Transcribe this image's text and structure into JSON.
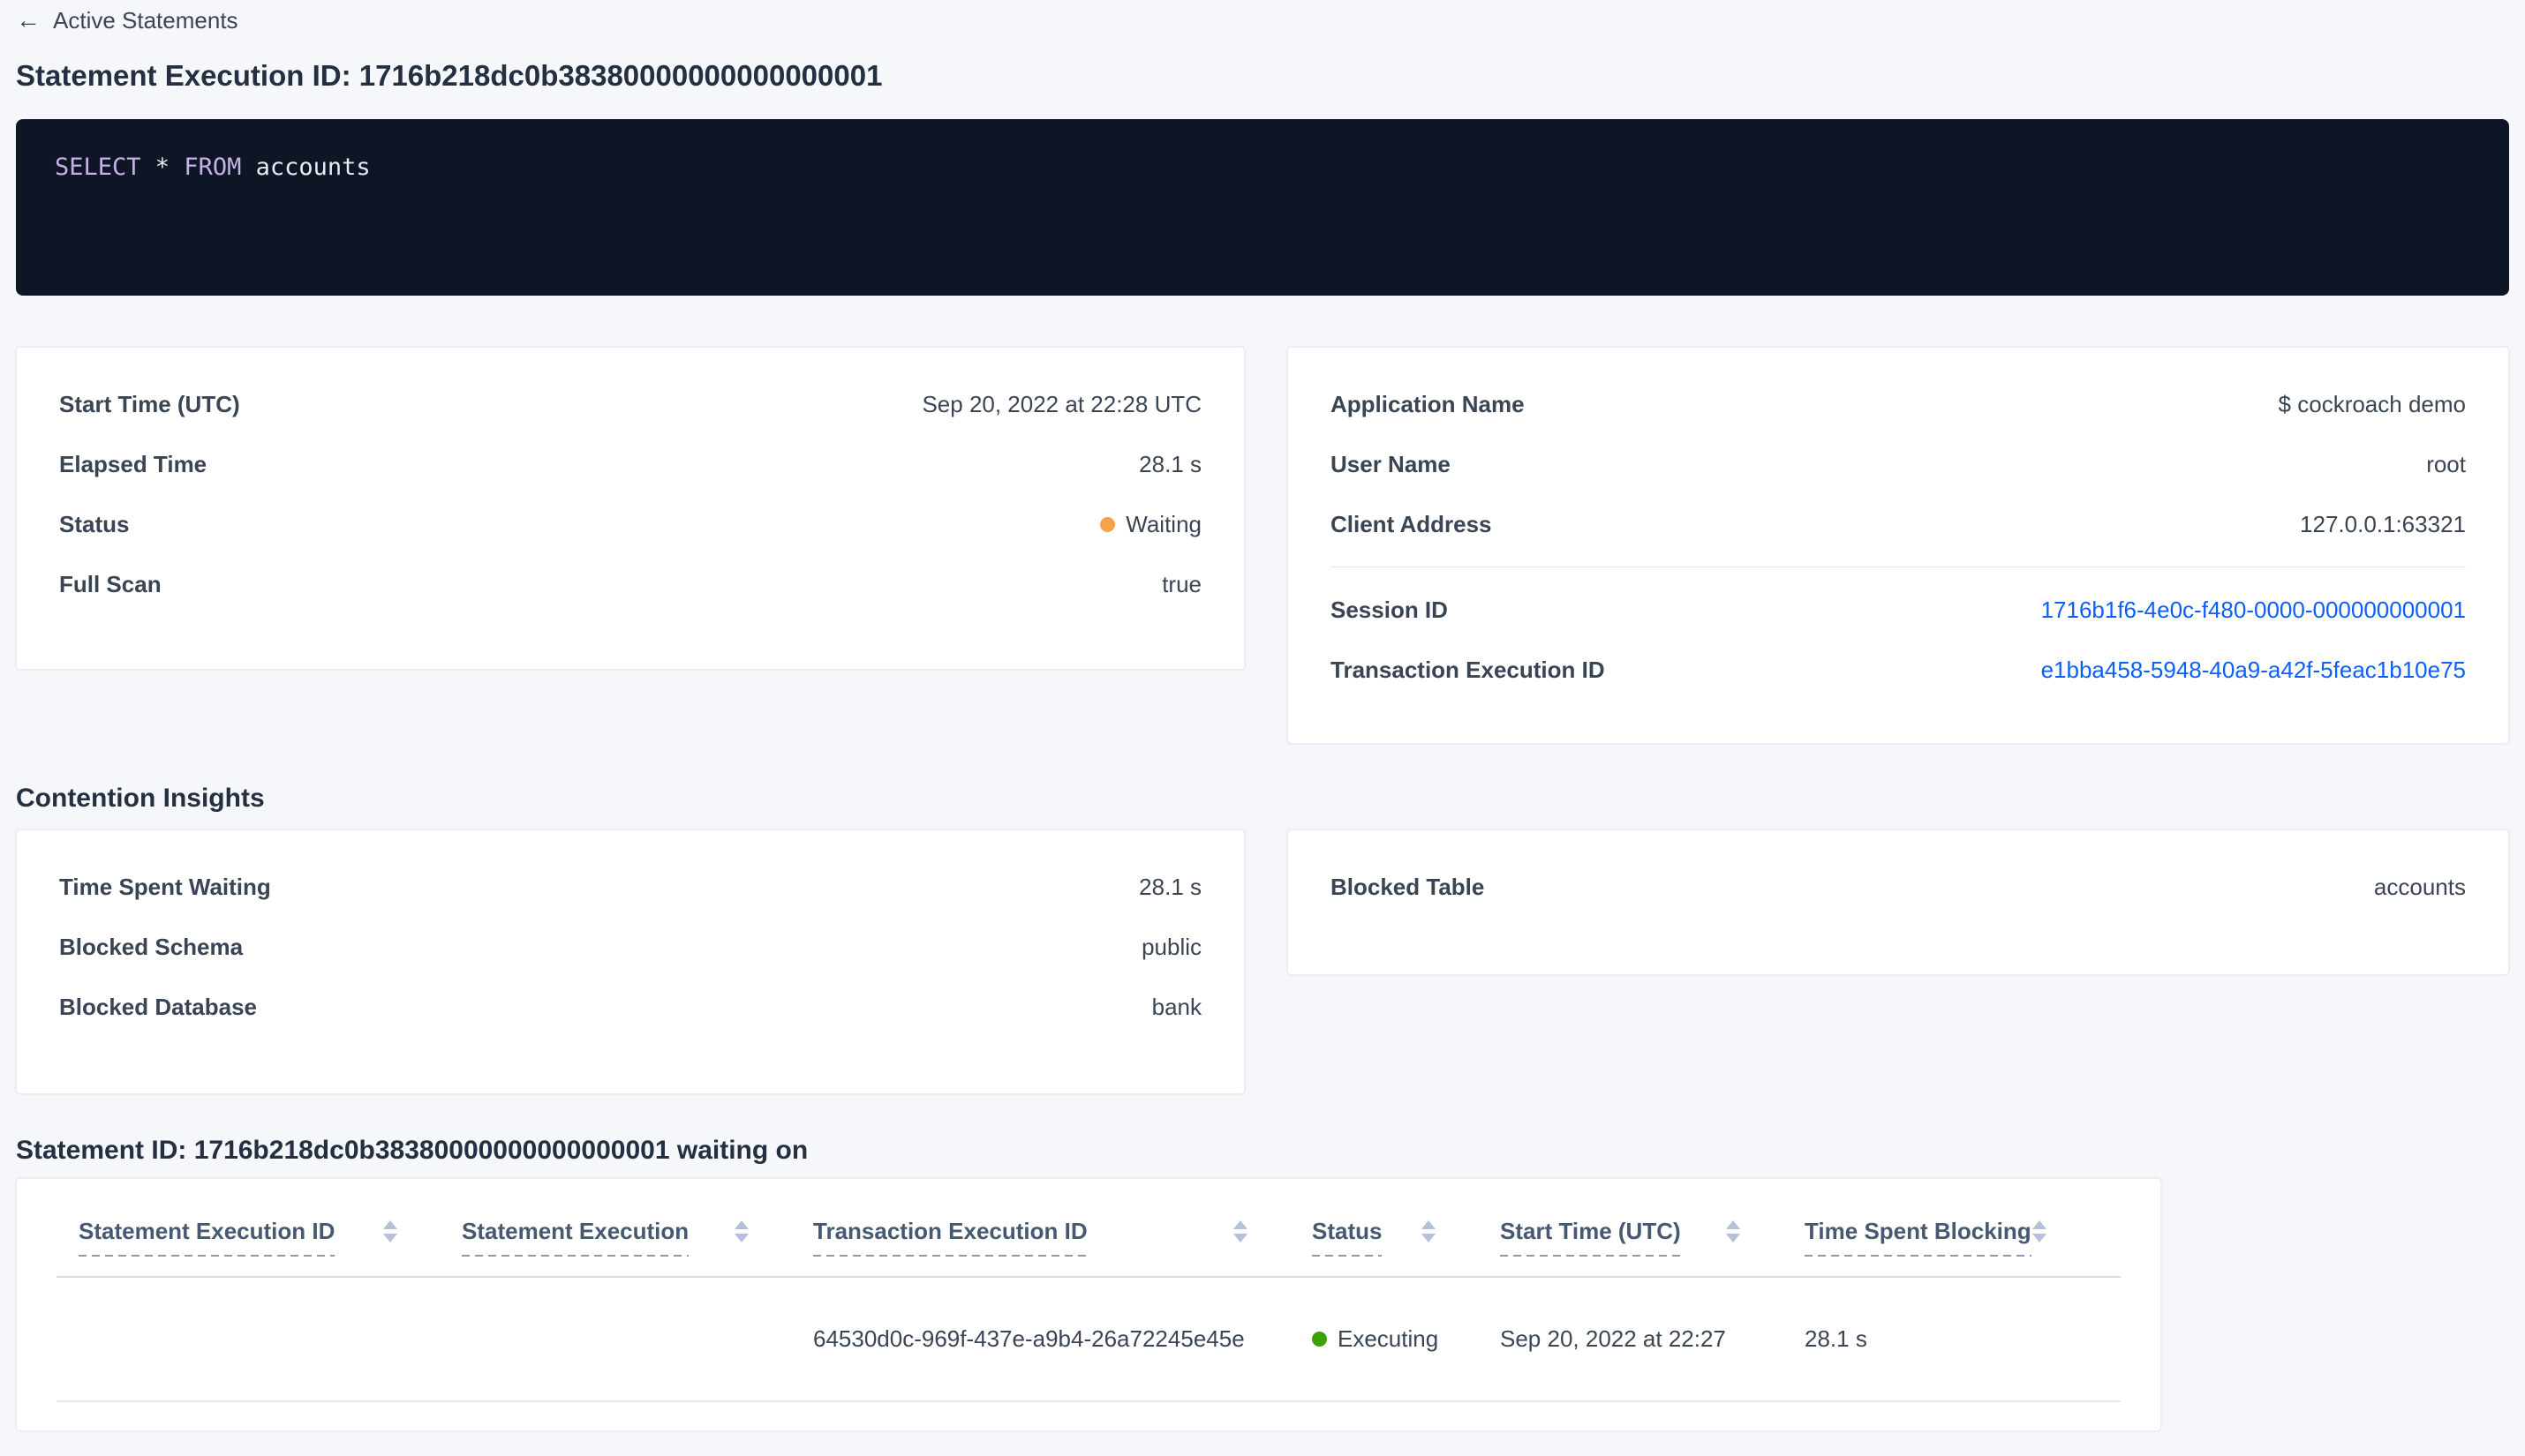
{
  "header": {
    "back_label": "Active Statements",
    "title": "Statement Execution ID: 1716b218dc0b38380000000000000001"
  },
  "icons": {
    "back_arrow": "←"
  },
  "sql_box": {
    "tokens": [
      "SELECT",
      " * ",
      "FROM",
      " accounts"
    ]
  },
  "execution_card": {
    "rows": [
      {
        "label": "Start Time (UTC)",
        "value": "Sep 20, 2022 at 22:28 UTC"
      },
      {
        "label": "Elapsed Time",
        "value": "28.1 s"
      },
      {
        "label": "Status",
        "value": "Waiting",
        "status_color": "#f7a34b"
      },
      {
        "label": "Full Scan",
        "value": "true"
      }
    ]
  },
  "session_card": {
    "rows": [
      {
        "label": "Application Name",
        "value": "$ cockroach demo"
      },
      {
        "label": "User Name",
        "value": "root"
      },
      {
        "label": "Client Address",
        "value": "127.0.0.1:63321"
      }
    ],
    "link_rows": [
      {
        "label": "Session ID",
        "value": "1716b1f6-4e0c-f480-0000-000000000001"
      },
      {
        "label": "Transaction Execution ID",
        "value": "e1bba458-5948-40a9-a42f-5feac1b10e75"
      }
    ]
  },
  "contention": {
    "heading": "Contention Insights",
    "left_rows": [
      {
        "label": "Time Spent Waiting",
        "value": "28.1 s"
      },
      {
        "label": "Blocked Schema",
        "value": "public"
      },
      {
        "label": "Blocked Database",
        "value": "bank"
      }
    ],
    "right_rows": [
      {
        "label": "Blocked Table",
        "value": "accounts"
      }
    ]
  },
  "waiting_section": {
    "heading": "Statement ID: 1716b218dc0b38380000000000000001 waiting on",
    "columns": [
      {
        "label": "Statement Execution ID"
      },
      {
        "label": "Statement Execution"
      },
      {
        "label": "Transaction Execution ID"
      },
      {
        "label": "Status"
      },
      {
        "label": "Start Time (UTC)"
      },
      {
        "label": "Time Spent Blocking"
      }
    ],
    "row": {
      "statement_execution_id": "",
      "statement_execution": "",
      "transaction_execution_id": "64530d0c-969f-437e-a9b4-26a72245e45e",
      "status": "Executing",
      "status_color": "#39a303",
      "start_time": "Sep 20, 2022 at 22:27",
      "time_spent_blocking": "28.1 s"
    }
  },
  "colors": {
    "page_bg": "#f5f7fa",
    "card_bg": "#ffffff",
    "sql_bg": "#0e1524",
    "sql_keyword": "#c5b1e8",
    "sql_text": "#e7ebf2",
    "link": "#0b5fff",
    "status_waiting": "#f7a34b",
    "status_executing": "#39a303",
    "heading_text": "#242f42",
    "body_text": "#394455",
    "table_header_text": "#475872"
  }
}
